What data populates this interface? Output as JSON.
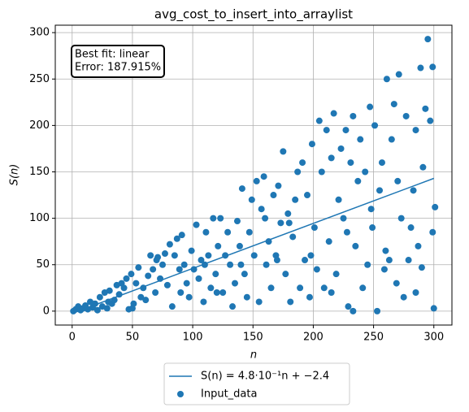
{
  "chart_data": {
    "type": "scatter",
    "title": "avg_cost_to_insert_into_arraylist",
    "x_label": "n",
    "y_label": "S(n)",
    "annotation": [
      "Best fit: linear",
      "Error: 187.915%"
    ],
    "xlim": [
      -14,
      315
    ],
    "ylim": [
      -15,
      308
    ],
    "xticks": [
      0,
      50,
      100,
      150,
      200,
      250,
      300
    ],
    "yticks": [
      0,
      50,
      100,
      150,
      200,
      250,
      300
    ],
    "grid": true,
    "legend": "below",
    "series": [
      {
        "name": "S(n) = 4.8·10⁻¹n + −2.4",
        "type": "line",
        "color": "#1f77b4",
        "x": [
          1,
          300
        ],
        "values": [
          -2,
          143
        ]
      },
      {
        "name": "Input_data",
        "type": "scatter",
        "color": "#1f77b4",
        "x": [
          1,
          3,
          5,
          7,
          9,
          11,
          13,
          15,
          17,
          19,
          21,
          23,
          25,
          27,
          29,
          31,
          33,
          35,
          37,
          39,
          41,
          43,
          45,
          47,
          49,
          51,
          53,
          55,
          57,
          59,
          61,
          63,
          65,
          67,
          69,
          71,
          73,
          75,
          77,
          79,
          81,
          83,
          85,
          87,
          89,
          91,
          93,
          95,
          97,
          99,
          101,
          103,
          105,
          107,
          109,
          111,
          113,
          115,
          117,
          119,
          121,
          123,
          125,
          127,
          129,
          131,
          133,
          135,
          137,
          139,
          141,
          143,
          145,
          147,
          149,
          151,
          153,
          155,
          157,
          159,
          161,
          163,
          165,
          167,
          169,
          171,
          173,
          175,
          177,
          179,
          181,
          183,
          185,
          187,
          189,
          191,
          193,
          195,
          197,
          199,
          201,
          203,
          205,
          207,
          209,
          211,
          213,
          215,
          217,
          219,
          221,
          223,
          225,
          227,
          229,
          231,
          233,
          235,
          237,
          239,
          241,
          243,
          245,
          247,
          249,
          251,
          253,
          255,
          257,
          259,
          261,
          263,
          265,
          267,
          269,
          271,
          273,
          275,
          277,
          279,
          281,
          283,
          285,
          287,
          289,
          291,
          293,
          295,
          297,
          299,
          300,
          301,
          299,
          290,
          285,
          270,
          260,
          248,
          233,
          228,
          215,
          198,
          180,
          170,
          160,
          140,
          120,
          110,
          90,
          70,
          50,
          30
        ],
        "values": [
          0,
          2,
          5,
          1,
          3,
          6,
          2,
          10,
          4,
          8,
          1,
          15,
          5,
          20,
          3,
          22,
          8,
          12,
          28,
          18,
          30,
          25,
          35,
          2,
          40,
          8,
          30,
          47,
          15,
          25,
          12,
          38,
          60,
          45,
          20,
          58,
          35,
          50,
          62,
          28,
          72,
          5,
          60,
          78,
          45,
          82,
          50,
          30,
          15,
          65,
          45,
          93,
          35,
          55,
          10,
          85,
          60,
          25,
          100,
          40,
          70,
          100,
          20,
          60,
          85,
          50,
          5,
          30,
          97,
          70,
          132,
          40,
          15,
          85,
          120,
          60,
          140,
          10,
          110,
          145,
          50,
          75,
          25,
          125,
          60,
          135,
          95,
          172,
          40,
          105,
          10,
          80,
          120,
          150,
          25,
          160,
          55,
          125,
          15,
          180,
          90,
          45,
          205,
          150,
          25,
          195,
          75,
          165,
          213,
          40,
          120,
          175,
          100,
          195,
          5,
          160,
          210,
          70,
          140,
          185,
          25,
          150,
          50,
          220,
          90,
          200,
          0,
          130,
          160,
          45,
          250,
          55,
          185,
          223,
          30,
          255,
          100,
          15,
          210,
          55,
          90,
          130,
          20,
          70,
          262,
          155,
          218,
          293,
          205,
          85,
          3,
          112,
          263,
          47,
          195,
          140,
          65,
          110,
          0,
          85,
          20,
          60,
          95,
          55,
          100,
          50,
          20,
          50,
          20,
          55,
          3,
          10
        ]
      }
    ]
  }
}
